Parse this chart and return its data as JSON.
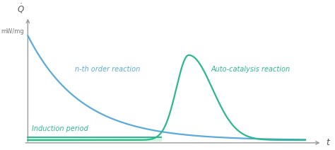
{
  "background_color": "#ffffff",
  "axis_color": "#999999",
  "ylabel_top": "$\\dot{Q}$",
  "ylabel_sub": "mW/mg",
  "xlabel": "t",
  "nth_order_color": "#5aabdb",
  "autocatalysis_color": "#2bb890",
  "induction_fill_color": "#d6f5e0",
  "induction_line_color": "#2bb890",
  "nth_order_text_color": "#5aabdb",
  "autocatalysis_text_color": "#2bb890",
  "induction_text_color": "#2bb890"
}
